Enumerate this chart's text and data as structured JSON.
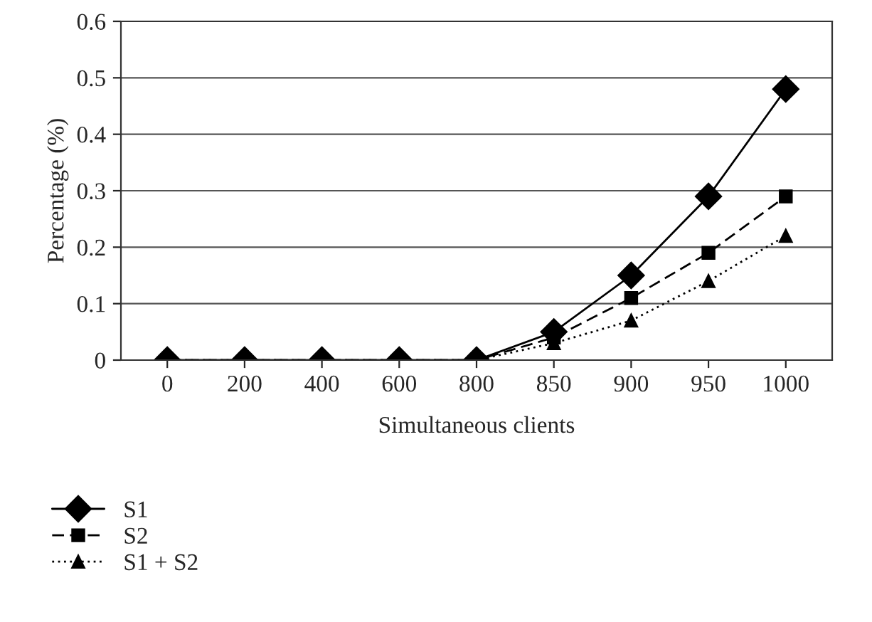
{
  "chart_data": {
    "type": "line",
    "xlabel": "Simultaneous clients",
    "ylabel": "Percentage (%)",
    "categories": [
      "0",
      "200",
      "400",
      "600",
      "800",
      "850",
      "900",
      "950",
      "1000"
    ],
    "series": [
      {
        "name": "S1",
        "color": "#000000",
        "marker": "diamond",
        "line_style": "solid",
        "values": [
          0,
          0,
          0,
          0,
          0,
          0.05,
          0.15,
          0.29,
          0.48
        ]
      },
      {
        "name": "S2",
        "color": "#000000",
        "marker": "square",
        "line_style": "dashed",
        "values": [
          0,
          0,
          0,
          0,
          0,
          0.04,
          0.11,
          0.19,
          0.29
        ]
      },
      {
        "name": "S1 + S2",
        "color": "#000000",
        "marker": "triangle",
        "line_style": "dotted",
        "values": [
          0,
          0,
          0,
          0,
          0,
          0.03,
          0.07,
          0.14,
          0.22
        ]
      }
    ],
    "ylim": [
      0,
      0.6
    ],
    "yticks": [
      0,
      0.1,
      0.2,
      0.3,
      0.4,
      0.5,
      0.6
    ],
    "grid": "y",
    "legend": "bottom left"
  }
}
